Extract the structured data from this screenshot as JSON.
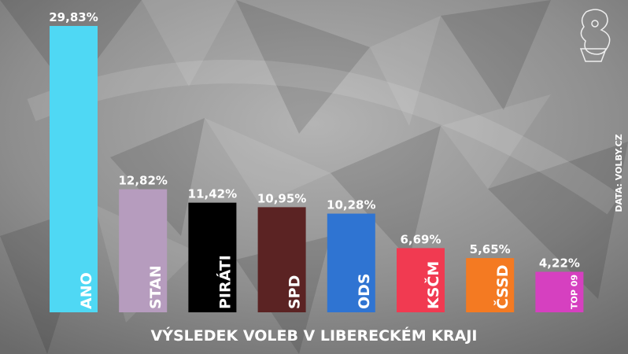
{
  "chart_data": {
    "type": "bar",
    "title": "VÝSLEDEK VOLEB V LIBERECKÉM KRAJI",
    "source": "DATA: VOLBY.CZ",
    "categories": [
      "ANO",
      "STAN",
      "PIRÁTI",
      "SPD",
      "ODS",
      "KSČM",
      "ČSSD",
      "TOP 09"
    ],
    "values": [
      29.83,
      12.82,
      11.42,
      10.95,
      10.28,
      6.69,
      5.65,
      4.22
    ],
    "value_labels": [
      "29,83%",
      "12,82%",
      "11,42%",
      "10,95%",
      "10,28%",
      "6,69%",
      "5,65%",
      "4,22%"
    ],
    "colors": [
      "#4fd8f4",
      "#b69cbe",
      "#000000",
      "#5b2323",
      "#2f74d2",
      "#f13a51",
      "#f47a22",
      "#d640c0"
    ]
  }
}
